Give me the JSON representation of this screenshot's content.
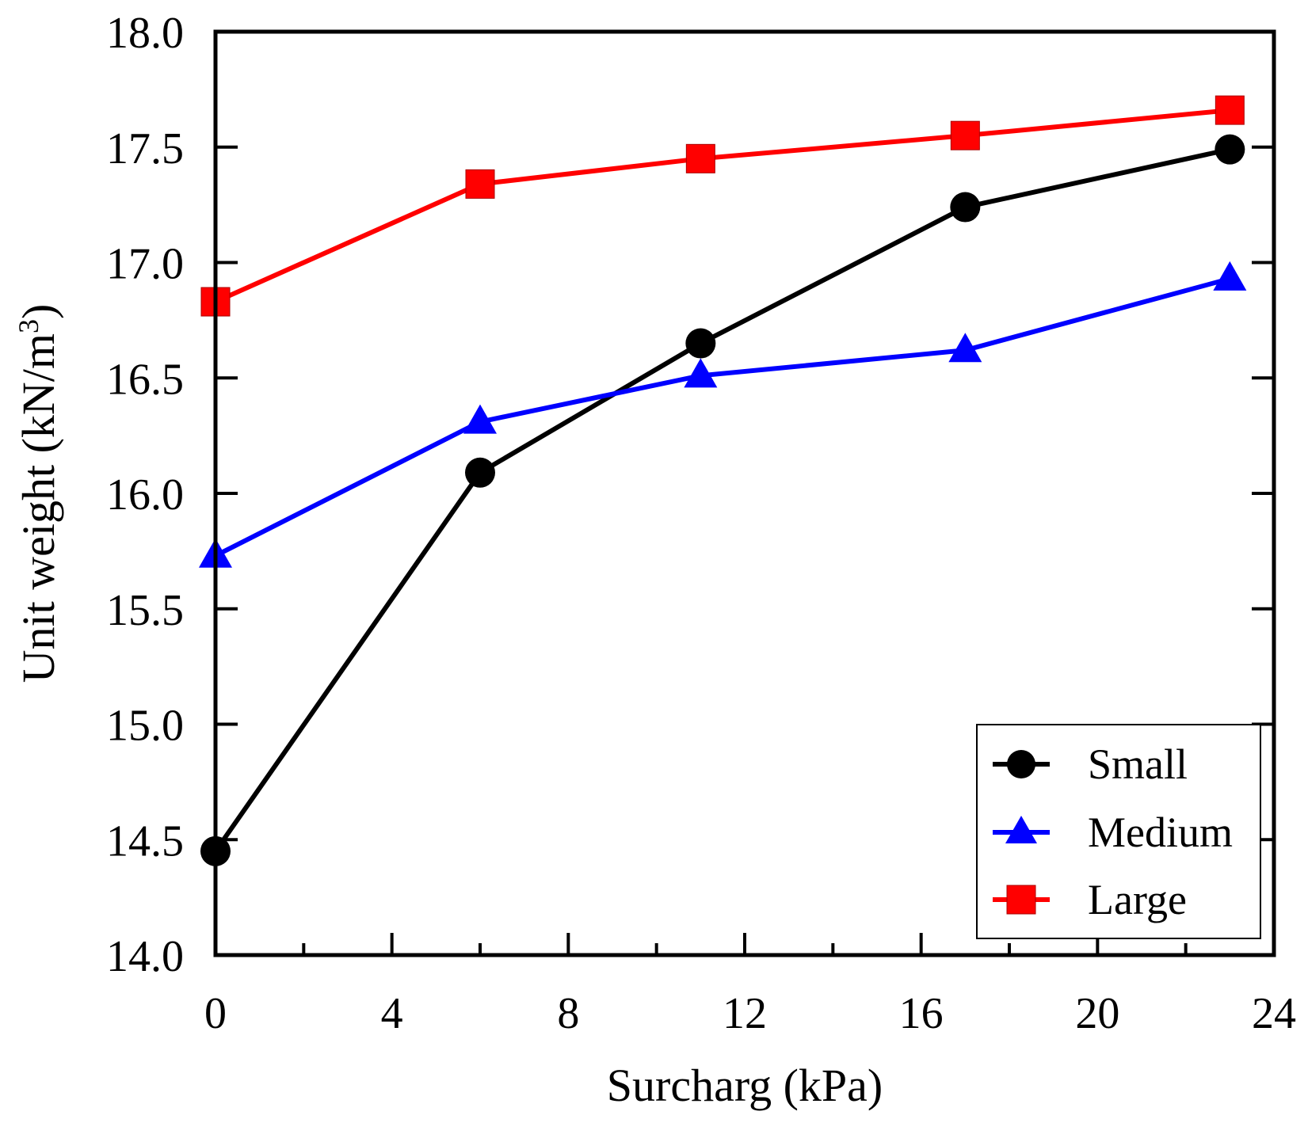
{
  "chart_data": {
    "type": "line",
    "title": "",
    "xlabel": "Surcharg (kPa)",
    "ylabel_main": "Unit weight (kN/m",
    "ylabel_sup": "3",
    "ylabel_close": ")",
    "xlim": [
      0,
      24
    ],
    "ylim": [
      14.0,
      18.0
    ],
    "xticks": [
      0,
      4,
      8,
      12,
      16,
      20,
      24
    ],
    "xtick_labels": [
      "0",
      "4",
      "8",
      "12",
      "16",
      "20",
      "24"
    ],
    "xminor": [
      2,
      6,
      10,
      14,
      18,
      22
    ],
    "yticks": [
      14.0,
      14.5,
      15.0,
      15.5,
      16.0,
      16.5,
      17.0,
      17.5,
      18.0
    ],
    "ytick_labels": [
      "14.0",
      "14.5",
      "15.0",
      "15.5",
      "16.0",
      "16.5",
      "17.0",
      "17.5",
      "18.0"
    ],
    "grid": false,
    "legend_position": "bottom-right",
    "series": [
      {
        "name": "Small",
        "marker": "circle",
        "color": "#000000",
        "x": [
          0,
          6,
          11,
          17,
          23
        ],
        "y": [
          14.45,
          16.09,
          16.65,
          17.24,
          17.49
        ]
      },
      {
        "name": "Medium",
        "marker": "triangle",
        "color": "#0000ff",
        "x": [
          0,
          6,
          11,
          17,
          23
        ],
        "y": [
          15.73,
          16.31,
          16.51,
          16.62,
          16.93
        ]
      },
      {
        "name": "Large",
        "marker": "square",
        "color": "#ff0000",
        "x": [
          0,
          6,
          11,
          17,
          23
        ],
        "y": [
          16.83,
          17.34,
          17.45,
          17.55,
          17.66
        ]
      }
    ]
  }
}
